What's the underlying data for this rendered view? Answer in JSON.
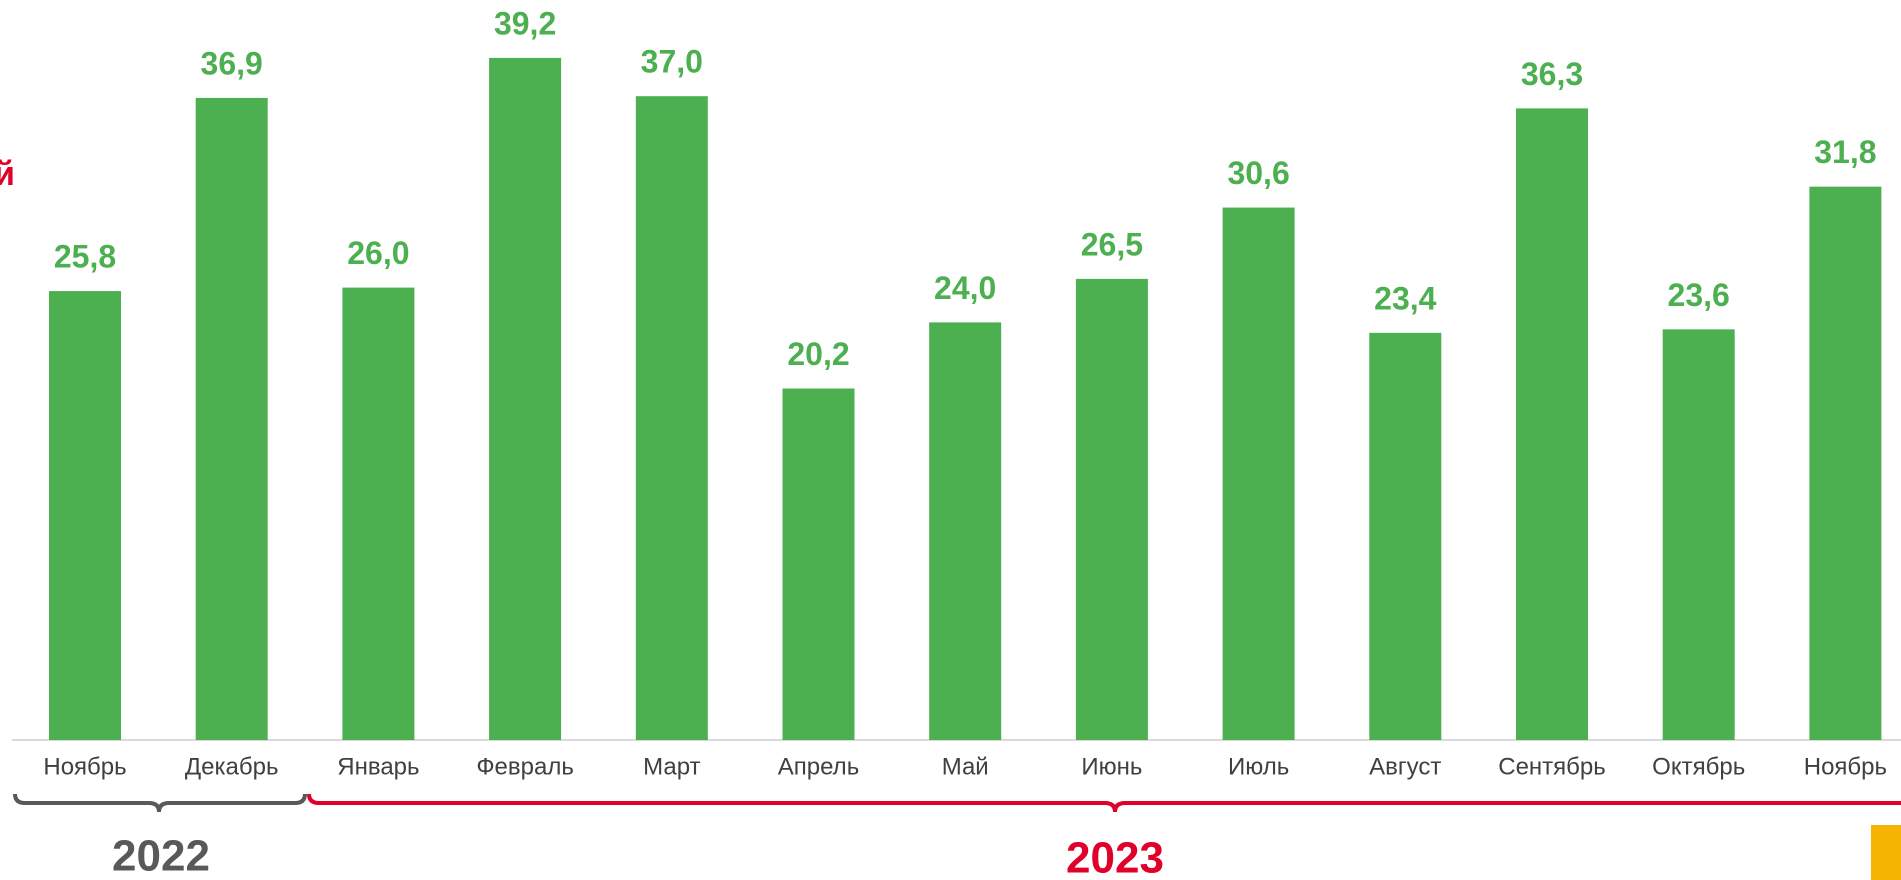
{
  "chart_data": {
    "type": "bar",
    "title": "й",
    "categories": [
      "Ноябрь",
      "Декабрь",
      "Январь",
      "Февраль",
      "Март",
      "Апрель",
      "Май",
      "Июнь",
      "Июль",
      "Август",
      "Сентябрь",
      "Октябрь",
      "Ноябрь"
    ],
    "values": [
      25.8,
      36.9,
      26.0,
      39.2,
      37.0,
      20.2,
      24.0,
      26.5,
      30.6,
      23.4,
      36.3,
      23.6,
      31.8
    ],
    "value_labels": [
      "25,8",
      "36,9",
      "26,0",
      "39,2",
      "37,0",
      "20,2",
      "24,0",
      "26,5",
      "30,6",
      "23,4",
      "36,3",
      "23,6",
      "31,8"
    ],
    "color": "#4caf50",
    "ylim": [
      0,
      40
    ],
    "annotations": [
      "2022",
      "2023"
    ]
  }
}
